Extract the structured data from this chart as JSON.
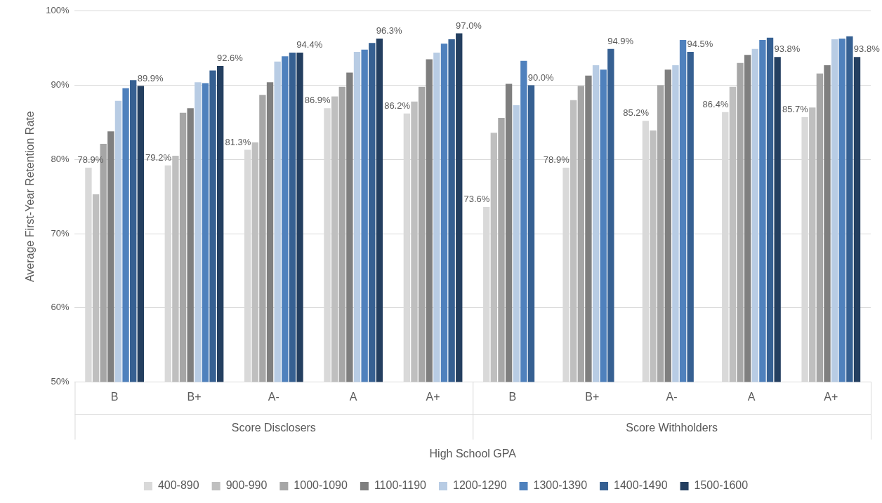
{
  "chart_data": {
    "type": "bar",
    "categories": [
      "B",
      "B+",
      "A-",
      "A",
      "A+",
      "B",
      "B+",
      "A-",
      "A",
      "A+"
    ],
    "xlabel": "High School GPA",
    "ylabel": "Average First-Year Retention Rate",
    "annotations": [
      "Score Disclosers",
      "Score Withholders"
    ],
    "ylim": [
      50,
      100
    ],
    "yticks": [
      {
        "value": 50,
        "label": "50%"
      },
      {
        "value": 60,
        "label": "60%"
      },
      {
        "value": 70,
        "label": "70%"
      },
      {
        "value": 80,
        "label": "80%"
      },
      {
        "value": 90,
        "label": "90%"
      },
      {
        "value": 100,
        "label": "100%"
      }
    ],
    "grid": "y",
    "legend": "bottom",
    "series": [
      {
        "name": "400-890",
        "color": "#d9d9d9",
        "values": [
          78.9,
          79.2,
          81.3,
          86.9,
          86.2,
          73.6,
          78.9,
          85.2,
          86.4,
          85.7
        ],
        "value_labels": [
          "78.9%",
          "79.2%",
          "81.3%",
          "86.9%",
          "86.2%",
          "73.6%",
          "78.9%",
          "85.2%",
          "86.4%",
          "85.7%"
        ]
      },
      {
        "name": "900-990",
        "color": "#bfbfbf",
        "values": [
          75.3,
          80.5,
          82.3,
          88.5,
          87.8,
          83.6,
          88.0,
          83.9,
          89.8,
          87.0
        ]
      },
      {
        "name": "1000-1090",
        "color": "#a6a6a6",
        "values": [
          82.1,
          86.3,
          88.7,
          89.8,
          89.8,
          85.6,
          89.9,
          90.0,
          93.0,
          91.6
        ]
      },
      {
        "name": "1100-1190",
        "color": "#7f7f7f",
        "values": [
          83.8,
          86.9,
          90.4,
          91.7,
          93.5,
          90.2,
          91.3,
          92.1,
          94.1,
          92.7
        ]
      },
      {
        "name": "1200-1290",
        "color": "#b8cce4",
        "values": [
          87.9,
          90.4,
          93.2,
          94.5,
          94.4,
          87.3,
          92.7,
          92.7,
          94.9,
          96.2
        ]
      },
      {
        "name": "1300-1390",
        "color": "#4f81bd",
        "values": [
          89.6,
          90.3,
          93.9,
          94.8,
          95.6,
          93.3,
          92.1,
          96.1,
          96.1,
          96.3
        ]
      },
      {
        "name": "1400-1490",
        "color": "#366092",
        "values": [
          90.7,
          92.0,
          94.4,
          95.7,
          96.2,
          90.0,
          94.9,
          94.5,
          96.4,
          96.6
        ],
        "value_labels": [
          null,
          null,
          null,
          null,
          null,
          "90.0%",
          "94.9%",
          "94.5%",
          null,
          null
        ]
      },
      {
        "name": "1500-1600",
        "color": "#243f60",
        "values": [
          89.9,
          92.6,
          94.4,
          96.3,
          97.0,
          null,
          null,
          null,
          93.8,
          93.8
        ],
        "value_labels": [
          "89.9%",
          "92.6%",
          "94.4%",
          "96.3%",
          "97.0%",
          null,
          null,
          null,
          "93.8%",
          "93.8%"
        ]
      }
    ]
  }
}
